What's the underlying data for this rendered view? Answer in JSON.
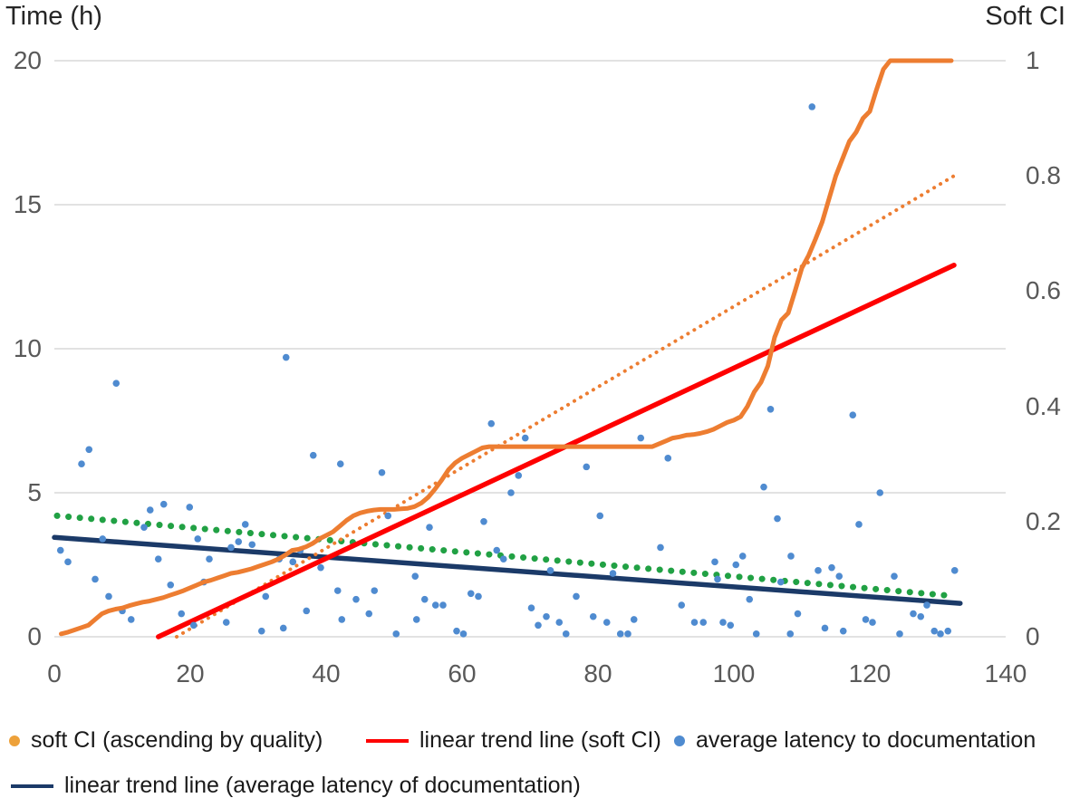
{
  "chart": {
    "left_axis": {
      "title": "Time (h)",
      "ticks": [
        "20",
        "15",
        "10",
        "5",
        "0"
      ]
    },
    "right_axis": {
      "title": "Soft CI",
      "ticks": [
        "1",
        "0.8",
        "0.6",
        "0.4",
        "0.2",
        "0"
      ]
    },
    "x_axis": {
      "ticks": [
        "0",
        "20",
        "40",
        "60",
        "80",
        "100",
        "120",
        "140"
      ]
    },
    "legend": [
      {
        "label": "soft CI (ascending by quality)",
        "swatch": "dot",
        "color": "#EDA13A"
      },
      {
        "label": "linear trend line (soft CI)",
        "swatch": "line",
        "color": "#FE0000"
      },
      {
        "label": "average latency to documentation",
        "swatch": "dot",
        "color": "#4F8BD0"
      },
      {
        "label": "linear trend line (average latency of documentation)",
        "swatch": "line",
        "color": "#1B3A68"
      }
    ]
  },
  "chart_data": {
    "type": "combo",
    "title": "",
    "x_axis": {
      "label": "",
      "range": [
        0,
        140
      ],
      "ticks": [
        0,
        20,
        40,
        60,
        80,
        100,
        120,
        140
      ]
    },
    "left_y_axis": {
      "label": "Time (h)",
      "range": [
        0,
        20
      ],
      "ticks": [
        0,
        5,
        10,
        15,
        20
      ]
    },
    "right_y_axis": {
      "label": "Soft CI",
      "range": [
        0,
        1
      ],
      "ticks": [
        0,
        0.2,
        0.4,
        0.6,
        0.8,
        1
      ]
    },
    "grid": "horizontal-only",
    "legend_position": "bottom",
    "series": [
      {
        "key": "latency-green-dotted-trend",
        "name": "dotted trend (average latency, no legend entry)",
        "type": "line",
        "style": "dotted",
        "axis": "left",
        "color": "#21A144",
        "points": [
          [
            0.4,
            4.2
          ],
          [
            132,
            1.42
          ]
        ]
      },
      {
        "key": "latency-navy-trend",
        "name": "linear trend line (average latency of documentation)",
        "type": "line",
        "style": "solid",
        "axis": "left",
        "color": "#1B3A68",
        "points": [
          [
            0,
            3.45
          ],
          [
            133.3,
            1.16
          ]
        ]
      },
      {
        "key": "softci-orange-dotted-trend",
        "name": "dotted trend (soft CI, no legend entry)",
        "type": "line",
        "style": "dotted",
        "axis": "right",
        "color": "#ED7D31",
        "points": [
          [
            18,
            0
          ],
          [
            132.4,
            0.8
          ]
        ]
      },
      {
        "key": "softci-red-trend",
        "name": "linear trend line (soft CI)",
        "type": "line",
        "style": "solid",
        "axis": "right",
        "color": "#FE0000",
        "points": [
          [
            15.3,
            0
          ],
          [
            132.4,
            0.645
          ]
        ]
      },
      {
        "key": "latency-scatter",
        "name": "average latency to documentation",
        "type": "scatter",
        "axis": "left",
        "color": "#4F8BD0",
        "points": [
          [
            0.9,
            3.0
          ],
          [
            2,
            2.6
          ],
          [
            4,
            6.0
          ],
          [
            5.1,
            6.5
          ],
          [
            6,
            2.0
          ],
          [
            7.1,
            3.4
          ],
          [
            8,
            1.4
          ],
          [
            9.1,
            8.8
          ],
          [
            10,
            0.9
          ],
          [
            11.3,
            0.6
          ],
          [
            13.2,
            3.8
          ],
          [
            14.1,
            4.4
          ],
          [
            15.3,
            2.7
          ],
          [
            16.1,
            4.6
          ],
          [
            17.1,
            1.8
          ],
          [
            18.7,
            0.8
          ],
          [
            19.9,
            4.5
          ],
          [
            20.5,
            0.4
          ],
          [
            21.1,
            3.4
          ],
          [
            22,
            1.9
          ],
          [
            22.8,
            2.7
          ],
          [
            25.3,
            0.5
          ],
          [
            26,
            3.1
          ],
          [
            27.1,
            3.3
          ],
          [
            28.1,
            3.9
          ],
          [
            29.1,
            3.2
          ],
          [
            30.5,
            0.2
          ],
          [
            31.1,
            1.4
          ],
          [
            33.1,
            2.7
          ],
          [
            33.7,
            0.3
          ],
          [
            34.1,
            9.7
          ],
          [
            35.1,
            2.6
          ],
          [
            36.2,
            3.0
          ],
          [
            37.1,
            0.9
          ],
          [
            38.1,
            6.3
          ],
          [
            39.2,
            2.4
          ],
          [
            41.7,
            1.6
          ],
          [
            42.1,
            6.0
          ],
          [
            42.3,
            0.6
          ],
          [
            44.4,
            1.3
          ],
          [
            46.3,
            0.8
          ],
          [
            47.1,
            1.6
          ],
          [
            48.2,
            5.7
          ],
          [
            49.1,
            4.2
          ],
          [
            50.3,
            0.1
          ],
          [
            53.1,
            2.1
          ],
          [
            53.3,
            0.6
          ],
          [
            54.5,
            1.3
          ],
          [
            55.2,
            3.8
          ],
          [
            56.1,
            1.1
          ],
          [
            57.2,
            1.1
          ],
          [
            59.2,
            0.2
          ],
          [
            60.2,
            0.1
          ],
          [
            61.3,
            1.5
          ],
          [
            62.4,
            1.4
          ],
          [
            63.2,
            4.0
          ],
          [
            64.3,
            7.4
          ],
          [
            65.1,
            3.0
          ],
          [
            66.1,
            2.7
          ],
          [
            67.2,
            5.0
          ],
          [
            68.3,
            5.6
          ],
          [
            69.3,
            6.9
          ],
          [
            70.2,
            1.0
          ],
          [
            71.2,
            0.4
          ],
          [
            72.4,
            0.7
          ],
          [
            73,
            2.3
          ],
          [
            74.3,
            0.5
          ],
          [
            75.3,
            0.1
          ],
          [
            76.8,
            1.4
          ],
          [
            78.3,
            5.9
          ],
          [
            79.3,
            0.7
          ],
          [
            80.3,
            4.2
          ],
          [
            81.3,
            0.5
          ],
          [
            82.2,
            2.2
          ],
          [
            83.3,
            0.1
          ],
          [
            84.4,
            0.1
          ],
          [
            85.3,
            0.6
          ],
          [
            86.3,
            6.9
          ],
          [
            89.2,
            3.1
          ],
          [
            90.3,
            6.2
          ],
          [
            92.3,
            1.1
          ],
          [
            94.2,
            0.5
          ],
          [
            95.5,
            0.5
          ],
          [
            97.2,
            2.6
          ],
          [
            97.6,
            2.0
          ],
          [
            98.4,
            0.5
          ],
          [
            99.5,
            0.4
          ],
          [
            100.3,
            2.5
          ],
          [
            101.3,
            2.8
          ],
          [
            102.3,
            1.3
          ],
          [
            103.3,
            0.1
          ],
          [
            104.4,
            5.2
          ],
          [
            105.4,
            7.9
          ],
          [
            106.4,
            4.1
          ],
          [
            106.9,
            1.9
          ],
          [
            108.3,
            0.1
          ],
          [
            108.4,
            2.8
          ],
          [
            109.4,
            0.8
          ],
          [
            111.5,
            18.4
          ],
          [
            112.4,
            2.3
          ],
          [
            113.4,
            0.3
          ],
          [
            114.4,
            2.4
          ],
          [
            115.5,
            2.1
          ],
          [
            116.1,
            0.2
          ],
          [
            117.5,
            7.7
          ],
          [
            118.4,
            3.9
          ],
          [
            119.4,
            0.6
          ],
          [
            120.4,
            0.5
          ],
          [
            121.5,
            5.0
          ],
          [
            123.6,
            2.1
          ],
          [
            124.4,
            0.1
          ],
          [
            126.4,
            0.8
          ],
          [
            127.5,
            0.7
          ],
          [
            128.4,
            1.1
          ],
          [
            129.5,
            0.2
          ],
          [
            130.4,
            0.1
          ],
          [
            131.5,
            0.2
          ],
          [
            132.5,
            2.3
          ]
        ]
      },
      {
        "key": "softci-curve",
        "name": "soft CI (ascending by quality)",
        "type": "line",
        "style": "solid",
        "axis": "right",
        "color": "#ED7D31",
        "points": [
          [
            1,
            0.005
          ],
          [
            2,
            0.008
          ],
          [
            3,
            0.012
          ],
          [
            4,
            0.016
          ],
          [
            5,
            0.02
          ],
          [
            6,
            0.03
          ],
          [
            7,
            0.04
          ],
          [
            8,
            0.045
          ],
          [
            9,
            0.048
          ],
          [
            10,
            0.05
          ],
          [
            11,
            0.054
          ],
          [
            12,
            0.057
          ],
          [
            13,
            0.06
          ],
          [
            14,
            0.062
          ],
          [
            15,
            0.065
          ],
          [
            16,
            0.068
          ],
          [
            17,
            0.072
          ],
          [
            18,
            0.076
          ],
          [
            19,
            0.08
          ],
          [
            20,
            0.085
          ],
          [
            21,
            0.09
          ],
          [
            22,
            0.095
          ],
          [
            23,
            0.098
          ],
          [
            24,
            0.102
          ],
          [
            25,
            0.106
          ],
          [
            26,
            0.11
          ],
          [
            27,
            0.112
          ],
          [
            28,
            0.115
          ],
          [
            29,
            0.118
          ],
          [
            30,
            0.122
          ],
          [
            31,
            0.126
          ],
          [
            32,
            0.13
          ],
          [
            33,
            0.135
          ],
          [
            34,
            0.142
          ],
          [
            35,
            0.15
          ],
          [
            36,
            0.152
          ],
          [
            37,
            0.156
          ],
          [
            38,
            0.162
          ],
          [
            39,
            0.17
          ],
          [
            40,
            0.176
          ],
          [
            41,
            0.182
          ],
          [
            42,
            0.192
          ],
          [
            43,
            0.202
          ],
          [
            44,
            0.21
          ],
          [
            45,
            0.215
          ],
          [
            46,
            0.218
          ],
          [
            47,
            0.22
          ],
          [
            48,
            0.221
          ],
          [
            49,
            0.221
          ],
          [
            50,
            0.221
          ],
          [
            51,
            0.222
          ],
          [
            52,
            0.223
          ],
          [
            53,
            0.226
          ],
          [
            54,
            0.232
          ],
          [
            55,
            0.242
          ],
          [
            56,
            0.256
          ],
          [
            57,
            0.272
          ],
          [
            58,
            0.29
          ],
          [
            59,
            0.302
          ],
          [
            60,
            0.31
          ],
          [
            61,
            0.316
          ],
          [
            62,
            0.322
          ],
          [
            63,
            0.328
          ],
          [
            64,
            0.33
          ],
          [
            68,
            0.33
          ],
          [
            72,
            0.33
          ],
          [
            76,
            0.33
          ],
          [
            80,
            0.33
          ],
          [
            84,
            0.33
          ],
          [
            88,
            0.33
          ],
          [
            89,
            0.335
          ],
          [
            90,
            0.34
          ],
          [
            91,
            0.345
          ],
          [
            92,
            0.347
          ],
          [
            93,
            0.35
          ],
          [
            94,
            0.351
          ],
          [
            95,
            0.353
          ],
          [
            96,
            0.356
          ],
          [
            97,
            0.36
          ],
          [
            98,
            0.366
          ],
          [
            99,
            0.372
          ],
          [
            100,
            0.376
          ],
          [
            101,
            0.382
          ],
          [
            102,
            0.4
          ],
          [
            103,
            0.425
          ],
          [
            104,
            0.442
          ],
          [
            105,
            0.47
          ],
          [
            106,
            0.52
          ],
          [
            107,
            0.55
          ],
          [
            108,
            0.562
          ],
          [
            109,
            0.6
          ],
          [
            110,
            0.64
          ],
          [
            111,
            0.662
          ],
          [
            112,
            0.69
          ],
          [
            113,
            0.72
          ],
          [
            114,
            0.76
          ],
          [
            115,
            0.8
          ],
          [
            116,
            0.83
          ],
          [
            117,
            0.86
          ],
          [
            118,
            0.876
          ],
          [
            119,
            0.9
          ],
          [
            120,
            0.912
          ],
          [
            121,
            0.95
          ],
          [
            122,
            0.985
          ],
          [
            123,
            1
          ],
          [
            127,
            1
          ],
          [
            132,
            1
          ]
        ]
      }
    ]
  }
}
